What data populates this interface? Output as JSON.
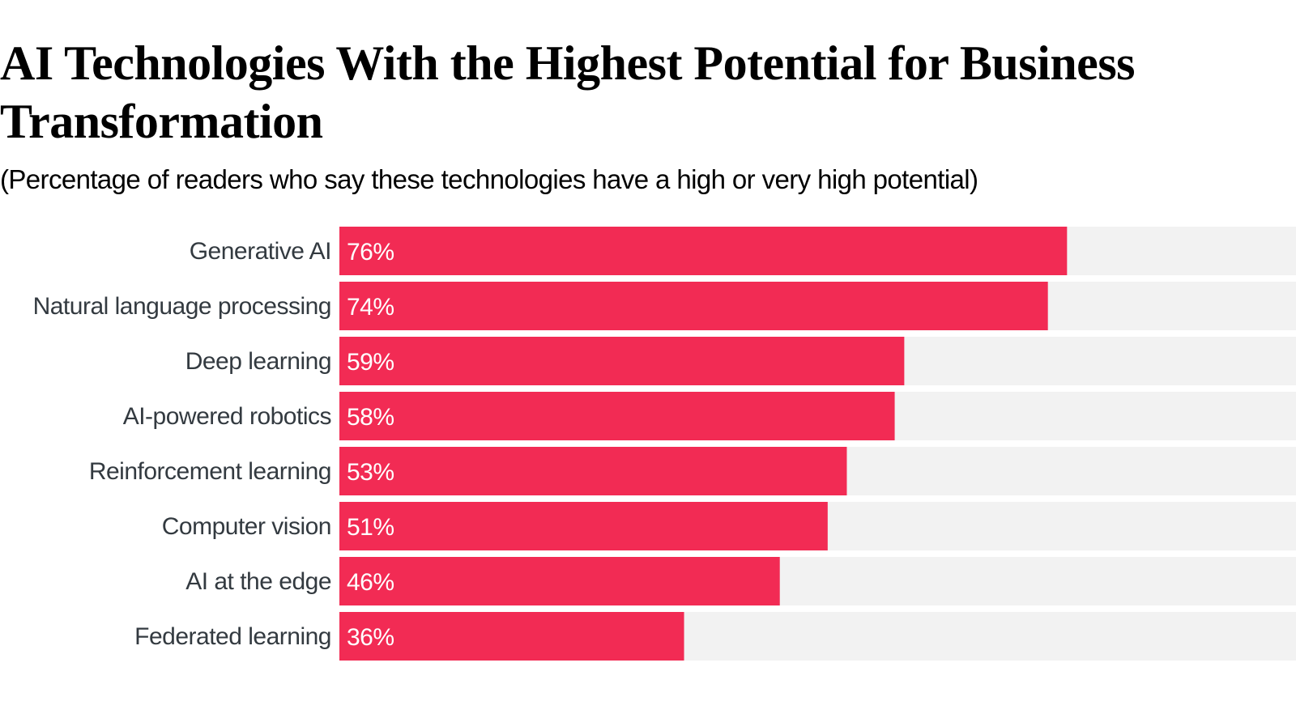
{
  "chart_data": {
    "type": "bar",
    "orientation": "horizontal",
    "title": "AI Technologies With the Highest Potential for Business Transformation",
    "subtitle": "(Percentage of readers who say these technologies have a high or very high potential)",
    "categories": [
      "Generative AI",
      "Natural language processing",
      "Deep learning",
      "AI-powered robotics",
      "Reinforcement learning",
      "Computer vision",
      "AI at the edge",
      "Federated learning"
    ],
    "values": [
      76,
      74,
      59,
      58,
      53,
      51,
      46,
      36
    ],
    "value_labels": [
      "76%",
      "74%",
      "59%",
      "58%",
      "53%",
      "51%",
      "46%",
      "36%"
    ],
    "xlim": [
      0,
      100
    ],
    "xlabel": "",
    "ylabel": "",
    "grid": false,
    "legend": "none",
    "bar_color": "#f22b54",
    "track_color": "#f2f2f2"
  }
}
